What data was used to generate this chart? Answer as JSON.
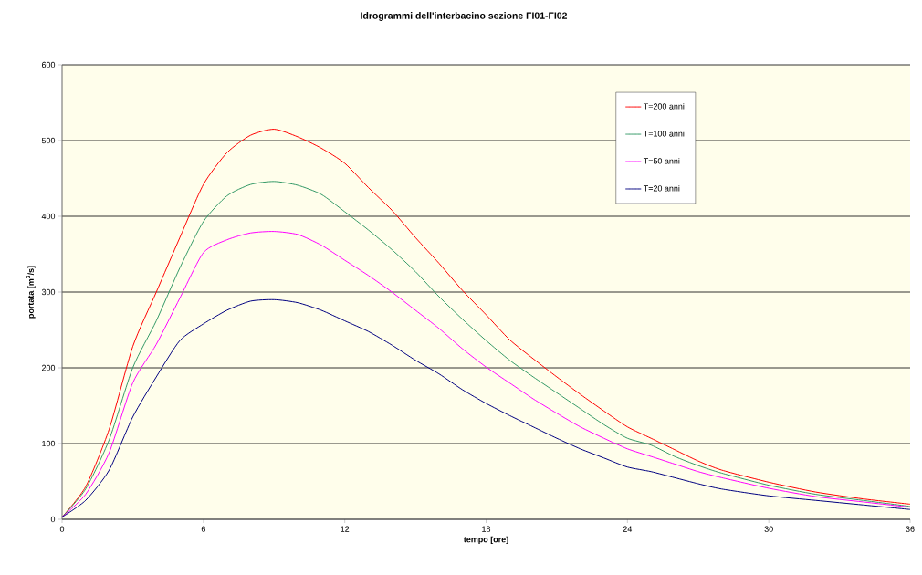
{
  "chart_data": {
    "type": "line",
    "title": "Idrogrammi dell'interbacino sezione FI01-FI02",
    "xlabel": "tempo [ore]",
    "ylabel": "portata [m$^{3}$/s]",
    "x": [
      0,
      1,
      2,
      3,
      4,
      5,
      6,
      7,
      8,
      9,
      10,
      11,
      12,
      13,
      14,
      15,
      16,
      17,
      18,
      19,
      20,
      21,
      22,
      23,
      24,
      25,
      26,
      27,
      28,
      30,
      32,
      34,
      36
    ],
    "series": [
      {
        "name": "T=200 anni",
        "color": "#ff0000",
        "values": [
          3,
          43,
          119,
          228,
          300,
          372,
          442,
          484,
          507,
          515,
          505,
          490,
          470,
          438,
          408,
          372,
          338,
          302,
          270,
          237,
          212,
          188,
          165,
          143,
          122,
          107,
          92,
          77,
          65,
          49,
          36,
          27,
          20
        ]
      },
      {
        "name": "T=100 anni",
        "color": "#339966",
        "values": [
          3,
          40,
          105,
          200,
          262,
          332,
          393,
          427,
          442,
          446,
          441,
          429,
          406,
          382,
          356,
          327,
          294,
          264,
          236,
          210,
          188,
          167,
          146,
          125,
          107,
          98,
          83,
          71,
          61,
          45,
          33,
          25,
          17
        ]
      },
      {
        "name": "T=50 anni",
        "color": "#ff00ff",
        "values": [
          3,
          33,
          88,
          180,
          231,
          292,
          352,
          369,
          378,
          380,
          376,
          362,
          342,
          322,
          300,
          276,
          252,
          225,
          201,
          180,
          159,
          140,
          122,
          107,
          93,
          83,
          73,
          63,
          55,
          41,
          30,
          23,
          16
        ]
      },
      {
        "name": "T=20 anni",
        "color": "#000080",
        "values": [
          3,
          25,
          65,
          135,
          188,
          236,
          258,
          276,
          288,
          290,
          286,
          276,
          262,
          248,
          230,
          210,
          192,
          171,
          153,
          137,
          122,
          107,
          93,
          81,
          69,
          63,
          55,
          47,
          40,
          31,
          25,
          19,
          13
        ]
      }
    ],
    "xlim": [
      0,
      36
    ],
    "xticks": [
      0,
      6,
      12,
      18,
      24,
      30,
      36
    ],
    "ylim": [
      0,
      600
    ],
    "yticks": [
      0,
      100,
      200,
      300,
      400,
      500,
      600
    ],
    "grid": "y",
    "legend": "top right",
    "marker": "none",
    "line_style": "solid"
  }
}
